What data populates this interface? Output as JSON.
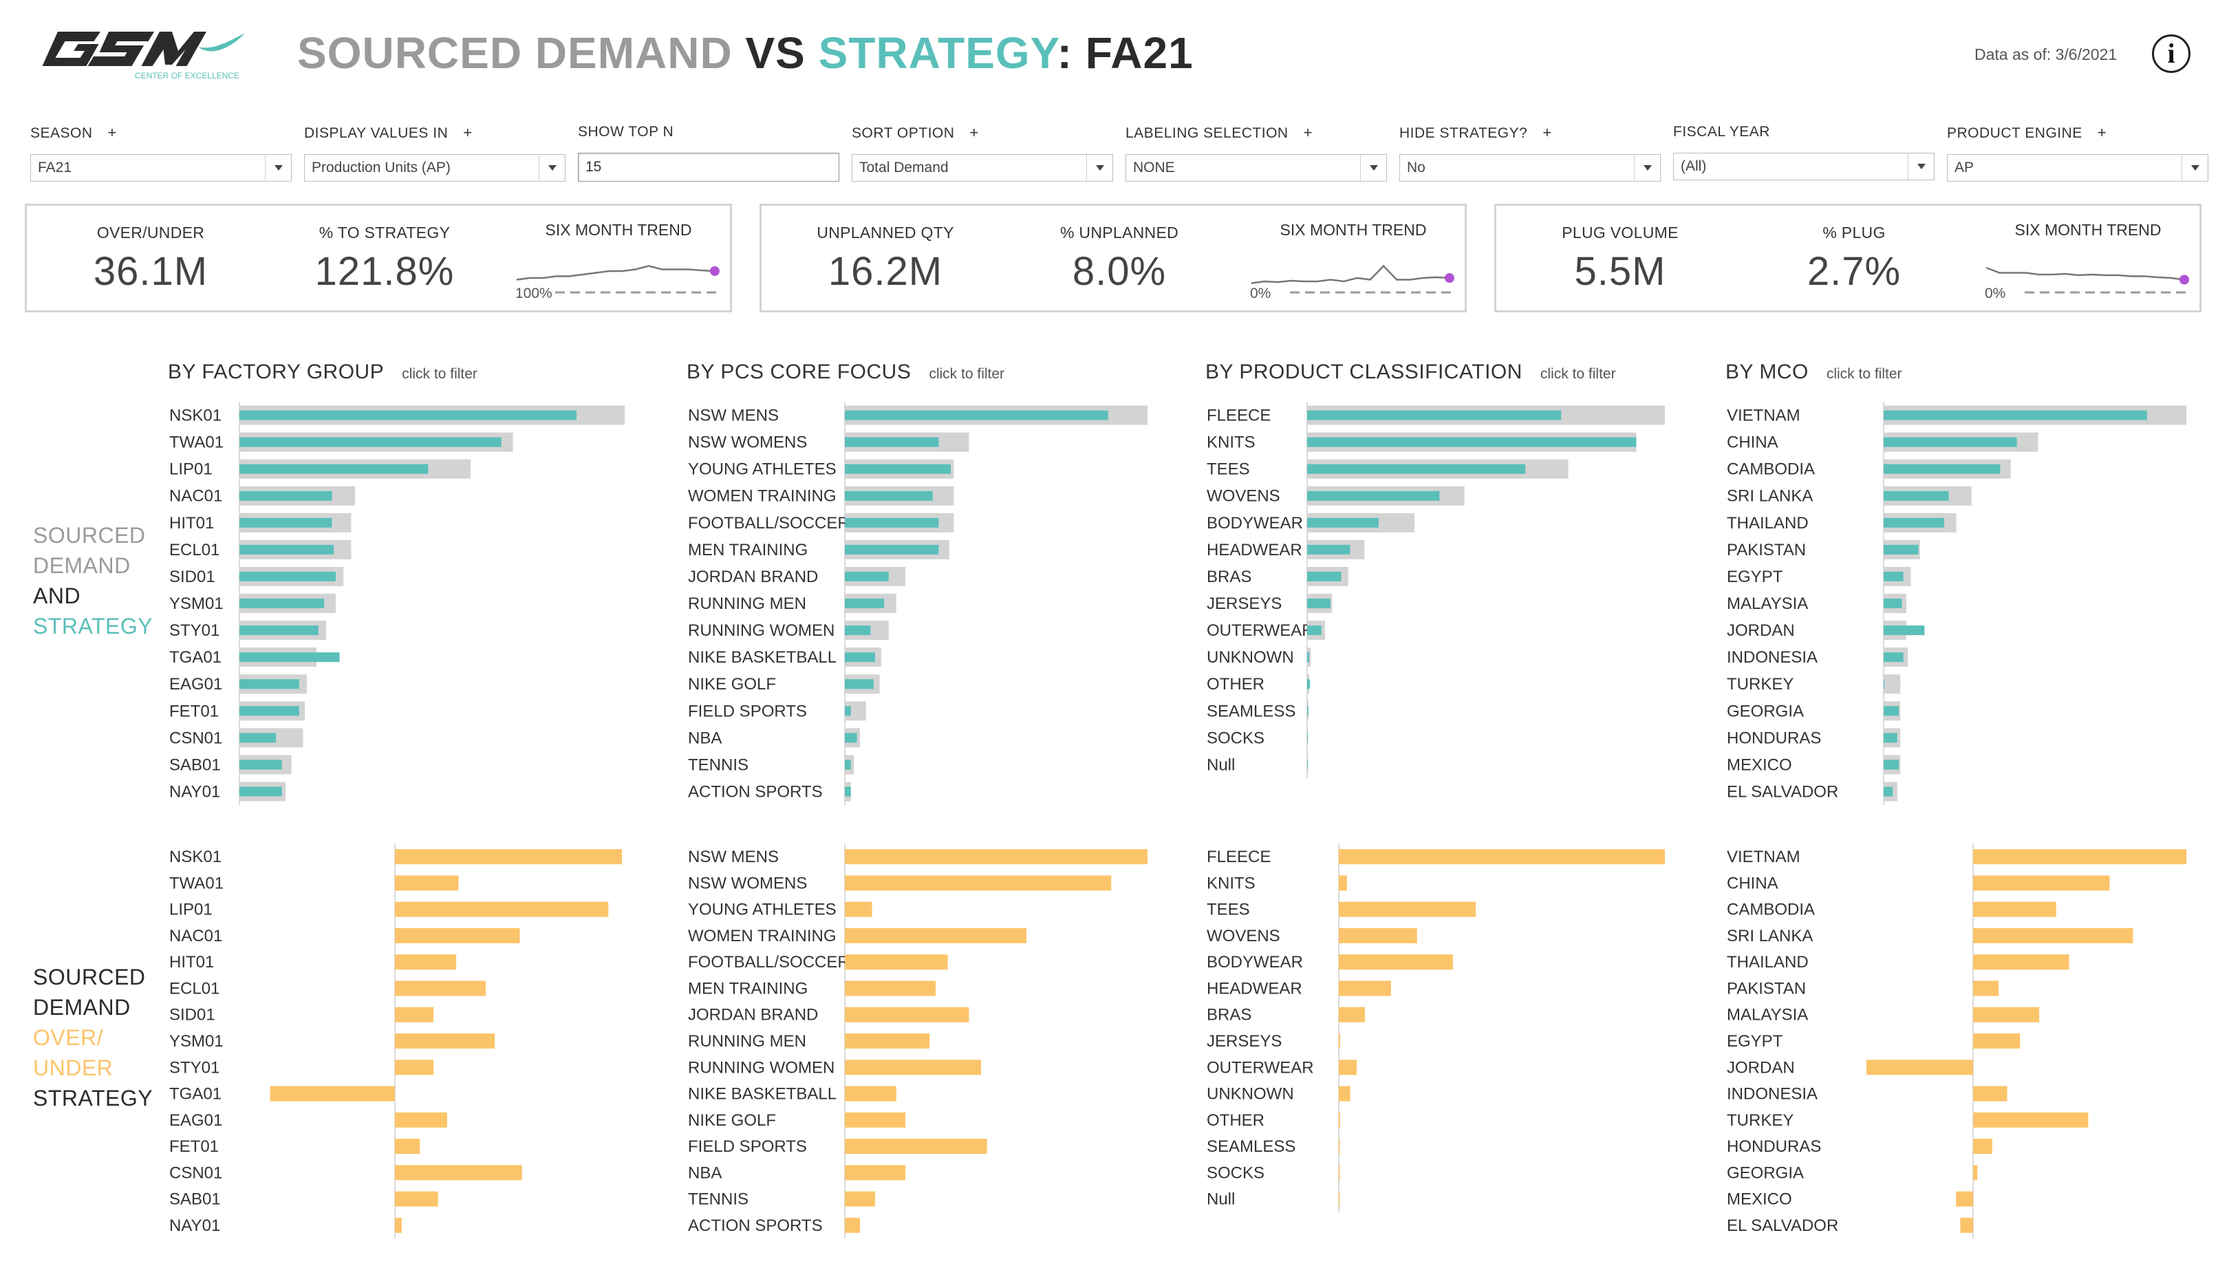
{
  "header": {
    "logo_text": "GSM",
    "logo_subtext": "CENTER OF EXCELLENCE",
    "title_part1": "SOURCED DEMAND ",
    "title_part2": "VS ",
    "title_part3": "STRATEGY",
    "title_part4": ": FA21",
    "data_asof": "Data as of: 3/6/2021",
    "info_glyph": "i"
  },
  "filters": [
    {
      "label": "SEASON",
      "plus": "+",
      "value": "FA21",
      "kind": "select"
    },
    {
      "label": "DISPLAY VALUES IN",
      "plus": "+",
      "value": "Production Units (AP)",
      "kind": "select"
    },
    {
      "label": "SHOW TOP N",
      "plus": "",
      "value": "15",
      "kind": "text"
    },
    {
      "label": "SORT OPTION",
      "plus": "+",
      "value": "Total Demand",
      "kind": "select"
    },
    {
      "label": "LABELING SELECTION",
      "plus": "+",
      "value": "NONE",
      "kind": "select"
    },
    {
      "label": "HIDE STRATEGY?",
      "plus": "+",
      "value": "No",
      "kind": "select"
    },
    {
      "label": "FISCAL YEAR",
      "plus": "",
      "value": "(All)",
      "kind": "select"
    },
    {
      "label": "PRODUCT ENGINE",
      "plus": "+",
      "value": "AP",
      "kind": "select"
    }
  ],
  "kpis": [
    {
      "label1": "OVER/UNDER",
      "value1": "36.1M",
      "label2": "% TO STRATEGY",
      "value2": "121.8%",
      "trend_label": "SIX MONTH TREND",
      "ref_label": "100%",
      "trend": [
        0.55,
        0.5,
        0.5,
        0.45,
        0.45,
        0.4,
        0.35,
        0.3,
        0.3,
        0.25,
        0.15,
        0.25,
        0.25,
        0.25,
        0.28,
        0.3
      ]
    },
    {
      "label1": "UNPLANNED QTY",
      "value1": "16.2M",
      "label2": "% UNPLANNED",
      "value2": "8.0%",
      "trend_label": "SIX MONTH TREND",
      "ref_label": "0%",
      "trend": [
        0.65,
        0.6,
        0.62,
        0.58,
        0.6,
        0.6,
        0.55,
        0.6,
        0.5,
        0.55,
        0.15,
        0.55,
        0.55,
        0.5,
        0.48,
        0.5
      ]
    },
    {
      "label1": "PLUG VOLUME",
      "value1": "5.5M",
      "label2": "% PLUG",
      "value2": "2.7%",
      "trend_label": "SIX MONTH TREND",
      "ref_label": "0%",
      "trend": [
        0.2,
        0.35,
        0.35,
        0.35,
        0.4,
        0.4,
        0.38,
        0.42,
        0.4,
        0.42,
        0.42,
        0.45,
        0.45,
        0.48,
        0.5,
        0.55
      ]
    }
  ],
  "row_labels": {
    "top": [
      "SOURCED",
      "DEMAND",
      "AND",
      "STRATEGY"
    ],
    "bottom": [
      "SOURCED",
      "DEMAND",
      "OVER/",
      "UNDER",
      "STRATEGY"
    ]
  },
  "colors": {
    "teal": "#5abfb9",
    "gray_bar": "#d3d3d3",
    "orange": "#fcc46a",
    "purple": "#b152d6",
    "axis": "#cfcfcf"
  },
  "sections": [
    {
      "title": "BY FACTORY GROUP",
      "click": "click to filter",
      "categories": [
        "NSK01",
        "TWA01",
        "LIP01",
        "NAC01",
        "HIT01",
        "ECL01",
        "SID01",
        "YSM01",
        "STY01",
        "TGA01",
        "EAG01",
        "FET01",
        "CSN01",
        "SAB01",
        "NAY01"
      ],
      "demand": [
        0.875,
        0.68,
        0.49,
        0.24,
        0.24,
        0.245,
        0.25,
        0.22,
        0.205,
        0.26,
        0.155,
        0.155,
        0.095,
        0.11,
        0.11
      ],
      "strategy": [
        1.0,
        0.71,
        0.6,
        0.3,
        0.29,
        0.29,
        0.27,
        0.25,
        0.225,
        0.2,
        0.175,
        0.17,
        0.165,
        0.135,
        0.12
      ],
      "over_categories": [
        "NSK01",
        "TWA01",
        "LIP01",
        "NAC01",
        "HIT01",
        "ECL01",
        "SID01",
        "YSM01",
        "STY01",
        "TGA01",
        "EAG01",
        "FET01",
        "CSN01",
        "SAB01",
        "NAY01"
      ],
      "over_under": [
        1.0,
        0.28,
        0.94,
        0.55,
        0.27,
        0.4,
        0.17,
        0.44,
        0.17,
        -0.55,
        0.23,
        0.11,
        0.56,
        0.19,
        0.03
      ]
    },
    {
      "title": "BY PCS CORE FOCUS",
      "click": "click to filter",
      "categories": [
        "NSW MENS",
        "NSW WOMENS",
        "YOUNG ATHLETES",
        "WOMEN TRAINING",
        "FOOTBALL/SOCCER",
        "MEN TRAINING",
        "JORDAN BRAND",
        "RUNNING MEN",
        "RUNNING WOMEN",
        "NIKE BASKETBALL",
        "NIKE GOLF",
        "FIELD SPORTS",
        "NBA",
        "TENNIS",
        "ACTION SPORTS"
      ],
      "demand": [
        0.87,
        0.31,
        0.35,
        0.29,
        0.31,
        0.31,
        0.145,
        0.13,
        0.085,
        0.1,
        0.095,
        0.02,
        0.04,
        0.02,
        0.02
      ],
      "strategy": [
        1.0,
        0.41,
        0.36,
        0.36,
        0.36,
        0.345,
        0.2,
        0.17,
        0.145,
        0.12,
        0.115,
        0.07,
        0.05,
        0.03,
        0.02
      ],
      "over_categories": [
        "NSW MENS",
        "NSW WOMENS",
        "YOUNG ATHLETES",
        "WOMEN TRAINING",
        "FOOTBALL/SOCCER",
        "MEN TRAINING",
        "JORDAN BRAND",
        "RUNNING MEN",
        "RUNNING WOMEN",
        "NIKE BASKETBALL",
        "NIKE GOLF",
        "FIELD SPORTS",
        "NBA",
        "TENNIS",
        "ACTION SPORTS"
      ],
      "over_under": [
        1.0,
        0.88,
        0.09,
        0.6,
        0.34,
        0.3,
        0.41,
        0.28,
        0.45,
        0.17,
        0.2,
        0.47,
        0.2,
        0.1,
        0.05
      ]
    },
    {
      "title": "BY PRODUCT CLASSIFICATION",
      "click": "click to filter",
      "categories": [
        "FLEECE",
        "KNITS",
        "TEES",
        "WOVENS",
        "BODYWEAR",
        "HEADWEAR",
        "BRAS",
        "JERSEYS",
        "OUTERWEAR",
        "UNKNOWN",
        "OTHER",
        "SEAMLESS",
        "SOCKS",
        "Null"
      ],
      "demand": [
        0.71,
        0.92,
        0.61,
        0.37,
        0.2,
        0.12,
        0.095,
        0.065,
        0.04,
        0.006,
        0.008,
        0.003,
        0.002,
        0.001
      ],
      "strategy": [
        1.0,
        0.92,
        0.73,
        0.44,
        0.3,
        0.16,
        0.115,
        0.07,
        0.05,
        0.01,
        0.006,
        0.004,
        0.002,
        0.002
      ],
      "over_categories": [
        "FLEECE",
        "KNITS",
        "TEES",
        "WOVENS",
        "BODYWEAR",
        "HEADWEAR",
        "BRAS",
        "JERSEYS",
        "OUTERWEAR",
        "UNKNOWN",
        "OTHER",
        "SEAMLESS",
        "SOCKS",
        "Null"
      ],
      "over_under": [
        1.0,
        0.025,
        0.42,
        0.24,
        0.35,
        0.16,
        0.08,
        0.004,
        0.055,
        0.035,
        0.004,
        0.003,
        0.002,
        0.001
      ]
    },
    {
      "title": "BY MCO",
      "click": "click to filter",
      "categories": [
        "VIETNAM",
        "CHINA",
        "CAMBODIA",
        "SRI LANKA",
        "THAILAND",
        "PAKISTAN",
        "EGYPT",
        "MALAYSIA",
        "JORDAN",
        "INDONESIA",
        "TURKEY",
        "GEORGIA",
        "HONDURAS",
        "MEXICO",
        "EL SALVADOR"
      ],
      "demand": [
        0.87,
        0.44,
        0.385,
        0.215,
        0.2,
        0.115,
        0.065,
        0.06,
        0.135,
        0.065,
        0.002,
        0.05,
        0.045,
        0.05,
        0.03
      ],
      "strategy": [
        1.0,
        0.51,
        0.42,
        0.29,
        0.24,
        0.12,
        0.09,
        0.075,
        0.075,
        0.08,
        0.055,
        0.055,
        0.055,
        0.055,
        0.045
      ],
      "over_categories": [
        "VIETNAM",
        "CHINA",
        "CAMBODIA",
        "SRI LANKA",
        "THAILAND",
        "PAKISTAN",
        "MALAYSIA",
        "EGYPT",
        "JORDAN",
        "INDONESIA",
        "TURKEY",
        "HONDURAS",
        "GEORGIA",
        "MEXICO",
        "EL SALVADOR"
      ],
      "over_under": [
        1.0,
        0.64,
        0.39,
        0.75,
        0.45,
        0.12,
        0.31,
        0.22,
        -0.5,
        0.16,
        0.54,
        0.09,
        0.02,
        -0.08,
        -0.06
      ]
    }
  ]
}
